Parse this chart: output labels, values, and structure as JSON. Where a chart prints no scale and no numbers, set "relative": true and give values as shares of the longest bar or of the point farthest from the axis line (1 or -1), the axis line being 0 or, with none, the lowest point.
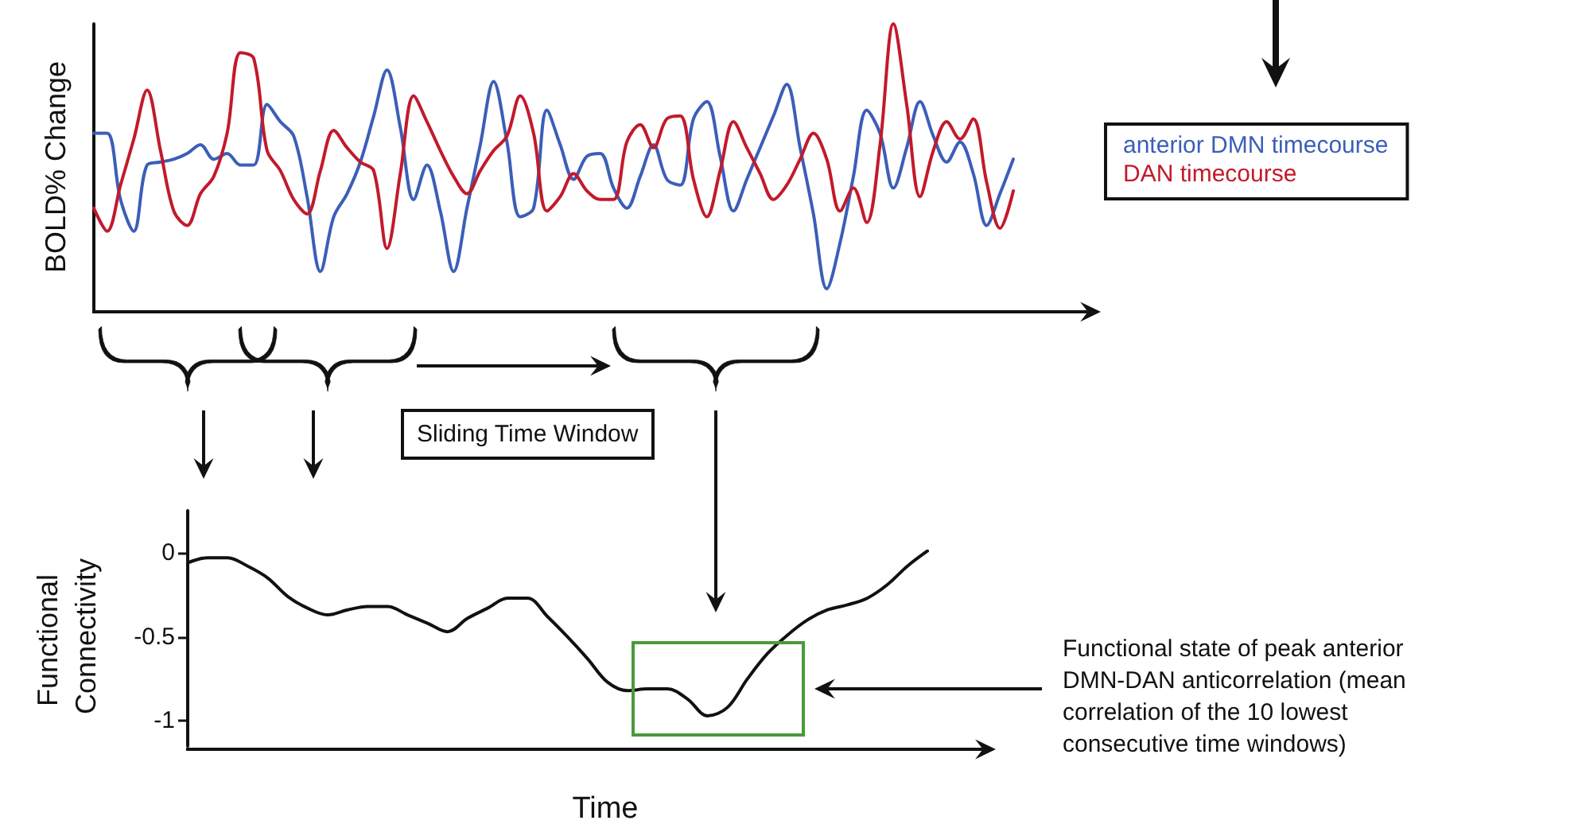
{
  "chart_data": [
    {
      "type": "line",
      "ylabel": "BOLD% Change",
      "relative": true,
      "tick_labels": false,
      "marker": "none",
      "legend": "right",
      "annotations": [
        "Sliding Time Window"
      ],
      "categories": [
        null,
        null,
        null,
        null,
        null,
        null,
        null,
        null,
        null,
        null,
        null,
        null,
        null,
        null,
        null,
        null,
        null,
        null,
        null,
        null,
        null,
        null,
        null,
        null,
        null,
        null,
        null,
        null,
        null,
        null,
        null,
        null,
        null,
        null,
        null,
        null,
        null,
        null,
        null,
        null,
        null,
        null,
        null,
        null,
        null,
        null,
        null,
        null,
        null,
        null,
        null,
        null,
        null,
        null,
        null,
        null,
        null,
        null,
        null,
        null,
        null,
        null,
        null,
        null,
        null,
        null,
        null,
        null,
        null,
        null
      ],
      "series": [
        {
          "name": "anterior DMN timecourse",
          "color": "#3b5eb8",
          "values": [
            0.62,
            0.62,
            0.39,
            0.28,
            0.51,
            0.52,
            0.53,
            0.55,
            0.58,
            0.53,
            0.55,
            0.51,
            0.51,
            0.72,
            0.66,
            0.61,
            0.4,
            0.14,
            0.33,
            0.41,
            0.52,
            0.68,
            0.84,
            0.64,
            0.39,
            0.51,
            0.35,
            0.14,
            0.36,
            0.58,
            0.8,
            0.59,
            0.33,
            0.36,
            0.7,
            0.58,
            0.46,
            0.54,
            0.55,
            0.43,
            0.36,
            0.47,
            0.58,
            0.46,
            0.44,
            0.67,
            0.73,
            0.54,
            0.35,
            0.46,
            0.57,
            0.68,
            0.79,
            0.57,
            0.34,
            0.08,
            0.24,
            0.47,
            0.7,
            0.62,
            0.43,
            0.57,
            0.73,
            0.61,
            0.52,
            0.59,
            0.48,
            0.3,
            0.41,
            0.53
          ]
        },
        {
          "name": "DAN timecourse",
          "color": "#c21a2b",
          "values": [
            0.36,
            0.28,
            0.44,
            0.6,
            0.77,
            0.56,
            0.35,
            0.3,
            0.41,
            0.47,
            0.62,
            0.9,
            0.88,
            0.56,
            0.49,
            0.39,
            0.34,
            0.49,
            0.63,
            0.57,
            0.52,
            0.49,
            0.22,
            0.48,
            0.75,
            0.66,
            0.56,
            0.47,
            0.41,
            0.49,
            0.56,
            0.61,
            0.75,
            0.62,
            0.35,
            0.4,
            0.48,
            0.42,
            0.39,
            0.39,
            0.59,
            0.65,
            0.57,
            0.67,
            0.68,
            0.46,
            0.33,
            0.49,
            0.66,
            0.57,
            0.48,
            0.39,
            0.44,
            0.53,
            0.62,
            0.53,
            0.35,
            0.43,
            0.31,
            0.58,
            1.0,
            0.72,
            0.4,
            0.56,
            0.66,
            0.6,
            0.67,
            0.45,
            0.29,
            0.42
          ]
        }
      ]
    },
    {
      "type": "line",
      "ylabel": "Functional Connectivity",
      "xlabel": "Time",
      "tick_labels": "y",
      "marker": "none",
      "color": "#111111",
      "ylim": [
        -1.15,
        0.25
      ],
      "yticks": [
        0,
        -0.5,
        -1
      ],
      "annotations": [
        "Functional state of peak anterior DMN-DAN anticorrelation (mean correlation of the 10 lowest consecutive time windows)"
      ],
      "categories": [
        null,
        null,
        null,
        null,
        null,
        null,
        null,
        null,
        null,
        null,
        null,
        null,
        null,
        null,
        null,
        null,
        null,
        null,
        null,
        null,
        null,
        null,
        null,
        null,
        null,
        null,
        null,
        null,
        null,
        null,
        null,
        null,
        null,
        null,
        null,
        null,
        null,
        null
      ],
      "values": [
        -0.06,
        -0.03,
        -0.03,
        -0.08,
        -0.15,
        -0.26,
        -0.33,
        -0.37,
        -0.34,
        -0.32,
        -0.32,
        -0.37,
        -0.42,
        -0.47,
        -0.39,
        -0.33,
        -0.27,
        -0.27,
        -0.38,
        -0.5,
        -0.63,
        -0.77,
        -0.82,
        -0.81,
        -0.81,
        -0.87,
        -0.97,
        -0.92,
        -0.75,
        -0.6,
        -0.49,
        -0.4,
        -0.34,
        -0.31,
        -0.27,
        -0.19,
        -0.08,
        0.01
      ]
    }
  ]
}
